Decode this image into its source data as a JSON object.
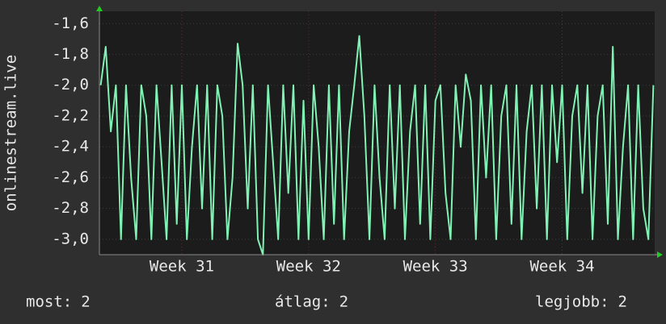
{
  "chart_data": {
    "type": "line",
    "y_label": "onlinestream.live",
    "x": [
      30.36,
      30.4,
      30.44,
      30.48,
      30.52,
      30.56,
      30.6,
      30.64,
      30.68,
      30.72,
      30.76,
      30.8,
      30.84,
      30.88,
      30.92,
      30.96,
      31,
      31.04,
      31.08,
      31.12,
      31.16,
      31.2,
      31.24,
      31.28,
      31.32,
      31.36,
      31.4,
      31.44,
      31.48,
      31.52,
      31.56,
      31.6,
      31.64,
      31.68,
      31.72,
      31.76,
      31.8,
      31.84,
      31.88,
      31.92,
      31.96,
      32,
      32.04,
      32.08,
      32.12,
      32.16,
      32.2,
      32.24,
      32.28,
      32.32,
      32.36,
      32.4,
      32.44,
      32.48,
      32.52,
      32.56,
      32.6,
      32.64,
      32.68,
      32.72,
      32.76,
      32.8,
      32.84,
      32.88,
      32.92,
      32.96,
      33,
      33.04,
      33.08,
      33.12,
      33.16,
      33.2,
      33.24,
      33.28,
      33.32,
      33.36,
      33.4,
      33.44,
      33.48,
      33.52,
      33.56,
      33.6,
      33.64,
      33.68,
      33.72,
      33.76,
      33.8,
      33.84,
      33.88,
      33.92,
      33.96,
      34,
      34.04,
      34.08,
      34.12,
      34.16,
      34.2,
      34.24,
      34.28,
      34.32,
      34.36,
      34.4,
      34.44,
      34.48,
      34.52,
      34.56,
      34.6,
      34.64,
      34.68,
      34.72
    ],
    "series": [
      {
        "color": "#80f2b4",
        "values": [
          -2.0,
          -1.75,
          -2.3,
          -2.0,
          -3.0,
          -2.0,
          -2.6,
          -3.0,
          -2.0,
          -2.2,
          -3.0,
          -2.0,
          -2.5,
          -3.0,
          -2.0,
          -2.9,
          -2.0,
          -3.0,
          -2.4,
          -2.0,
          -2.8,
          -2.0,
          -3.0,
          -2.0,
          -2.2,
          -3.0,
          -2.6,
          -1.73,
          -2.0,
          -2.8,
          -2.0,
          -3.0,
          -3.1,
          -2.0,
          -2.5,
          -3.0,
          -2.0,
          -2.7,
          -2.0,
          -3.0,
          -2.1,
          -3.0,
          -2.0,
          -2.4,
          -3.0,
          -2.0,
          -2.9,
          -2.0,
          -3.0,
          -2.3,
          -2.0,
          -1.68,
          -2.2,
          -3.0,
          -2.0,
          -2.6,
          -3.0,
          -2.0,
          -2.8,
          -2.0,
          -3.0,
          -2.3,
          -2.0,
          -2.9,
          -2.0,
          -3.0,
          -2.1,
          -2.0,
          -2.7,
          -3.0,
          -2.0,
          -2.4,
          -1.93,
          -2.1,
          -3.0,
          -2.0,
          -2.6,
          -2.0,
          -3.0,
          -2.2,
          -2.0,
          -2.9,
          -2.0,
          -3.0,
          -2.3,
          -2.0,
          -2.8,
          -2.0,
          -3.0,
          -2.0,
          -2.5,
          -2.0,
          -3.0,
          -2.2,
          -2.0,
          -2.7,
          -2.0,
          -3.0,
          -2.2,
          -2.0,
          -2.9,
          -1.75,
          -3.0,
          -2.4,
          -2.0,
          -3.0,
          -2.0,
          -2.8,
          -3.0,
          -2.0
        ]
      }
    ],
    "xlim": [
      30.35,
      34.73
    ],
    "xticks": [
      {
        "value": 31,
        "label": "Week 31"
      },
      {
        "value": 32,
        "label": "Week 32"
      },
      {
        "value": 33,
        "label": "Week 33"
      },
      {
        "value": 34,
        "label": "Week 34"
      }
    ],
    "ylim": [
      -3.1,
      -1.52
    ],
    "yticks": [
      {
        "value": -1.6,
        "label": "-1,6"
      },
      {
        "value": -1.8,
        "label": "-1,8"
      },
      {
        "value": -2.0,
        "label": "-2,0"
      },
      {
        "value": -2.2,
        "label": "-2,2"
      },
      {
        "value": -2.4,
        "label": "-2,4"
      },
      {
        "value": -2.6,
        "label": "-2,6"
      },
      {
        "value": -2.8,
        "label": "-2,8"
      },
      {
        "value": -3.0,
        "label": "-3,0"
      }
    ],
    "grid": true,
    "stats": [
      {
        "label": "most:",
        "value": 2
      },
      {
        "label": "átlag:",
        "value": 2
      },
      {
        "label": "legjobb:",
        "value": 2
      }
    ]
  }
}
